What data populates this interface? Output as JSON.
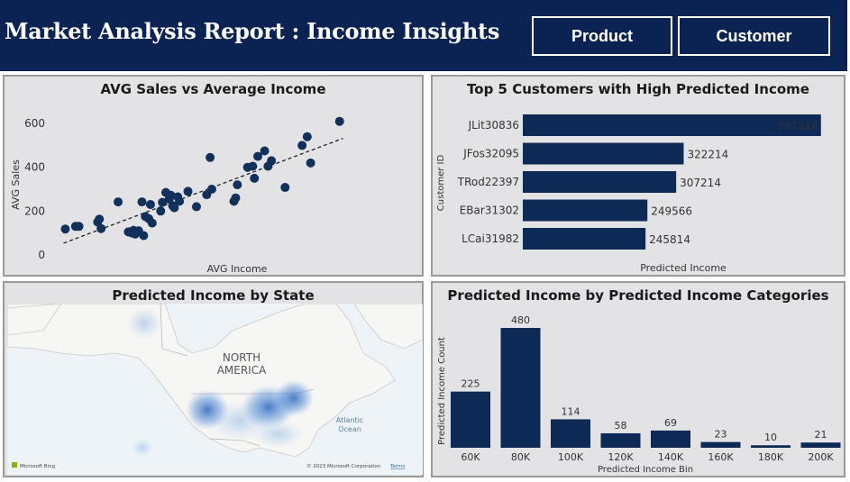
{
  "header": {
    "title": "Market Analysis Report : Income Insights",
    "buttons": [
      {
        "label": "Product"
      },
      {
        "label": "Customer"
      }
    ]
  },
  "colors": {
    "brand_navy": "#0b2352",
    "panel_bg": "#e3e3e5",
    "mark_navy": "#11305b",
    "map_water": "#eef3f7",
    "map_land": "#f6f6f4",
    "heat_blue": "#3a7ad0"
  },
  "scatter_panel": {
    "title": "AVG Sales vs Average Income"
  },
  "top5_panel": {
    "title": "Top 5 Customers with High Predicted Income"
  },
  "map_panel": {
    "title": "Predicted Income by State",
    "continent_label_1": "NORTH",
    "continent_label_2": "AMERICA",
    "ocean_label_1": "Atlantic",
    "ocean_label_2": "Ocean",
    "logo_text": "Microsoft Bing",
    "copyright": "© 2023 Microsoft Corporation",
    "terms": "Terms"
  },
  "bins_panel": {
    "title": "Predicted Income by Predicted Income Categories"
  },
  "chart_data": [
    {
      "type": "scatter",
      "title": "AVG Sales vs Average Income",
      "xlabel": "AVG Income",
      "ylabel": "AVG Sales",
      "y_ticks": [
        "0",
        "200",
        "400",
        "600"
      ],
      "ylim": [
        -50,
        650
      ],
      "xlim": [
        0,
        100
      ],
      "trendline": true,
      "x_tick_labels": false,
      "points": [
        [
          2.5,
          118
        ],
        [
          5.5,
          130
        ],
        [
          6.5,
          130
        ],
        [
          12,
          150
        ],
        [
          12.5,
          163
        ],
        [
          13,
          120
        ],
        [
          18,
          242
        ],
        [
          21,
          105
        ],
        [
          22,
          100
        ],
        [
          22.5,
          112
        ],
        [
          23,
          95
        ],
        [
          24,
          110
        ],
        [
          25,
          242
        ],
        [
          25.5,
          88
        ],
        [
          26,
          175
        ],
        [
          27,
          165
        ],
        [
          27.5,
          230
        ],
        [
          28,
          145
        ],
        [
          30.5,
          200
        ],
        [
          31,
          240
        ],
        [
          32,
          285
        ],
        [
          33,
          255
        ],
        [
          33.5,
          272
        ],
        [
          34,
          225
        ],
        [
          34.5,
          215
        ],
        [
          35.5,
          265
        ],
        [
          36,
          245
        ],
        [
          38.5,
          290
        ],
        [
          41,
          220
        ],
        [
          44,
          275
        ],
        [
          45,
          445
        ],
        [
          45.5,
          300
        ],
        [
          52,
          245
        ],
        [
          52.5,
          260
        ],
        [
          53,
          320
        ],
        [
          56,
          400
        ],
        [
          57.5,
          405
        ],
        [
          58,
          350
        ],
        [
          59,
          450
        ],
        [
          61,
          475
        ],
        [
          62,
          405
        ],
        [
          63,
          430
        ],
        [
          67,
          308
        ],
        [
          72,
          500
        ],
        [
          73.5,
          540
        ],
        [
          74.5,
          420
        ],
        [
          83,
          610
        ]
      ]
    },
    {
      "type": "bar",
      "orientation": "horizontal",
      "title": "Top 5 Customers with High Predicted Income",
      "xlabel": "Predicted Income",
      "ylabel": "Customer ID",
      "categories": [
        "JLit30836",
        "JFos32095",
        "TRod22397",
        "EBar31302",
        "LCai31982"
      ],
      "values": [
        597214,
        322214,
        307214,
        249566,
        245814
      ],
      "xlim": [
        0,
        650000
      ]
    },
    {
      "type": "bar",
      "title": "Predicted Income by Predicted Income Categories",
      "xlabel": "Predicted Income Bin",
      "ylabel": "Predicted Income Count",
      "categories": [
        "60K",
        "80K",
        "100K",
        "120K",
        "140K",
        "160K",
        "180K",
        "200K"
      ],
      "values": [
        225,
        480,
        114,
        58,
        69,
        23,
        10,
        21
      ],
      "ylim": [
        0,
        480
      ]
    }
  ]
}
